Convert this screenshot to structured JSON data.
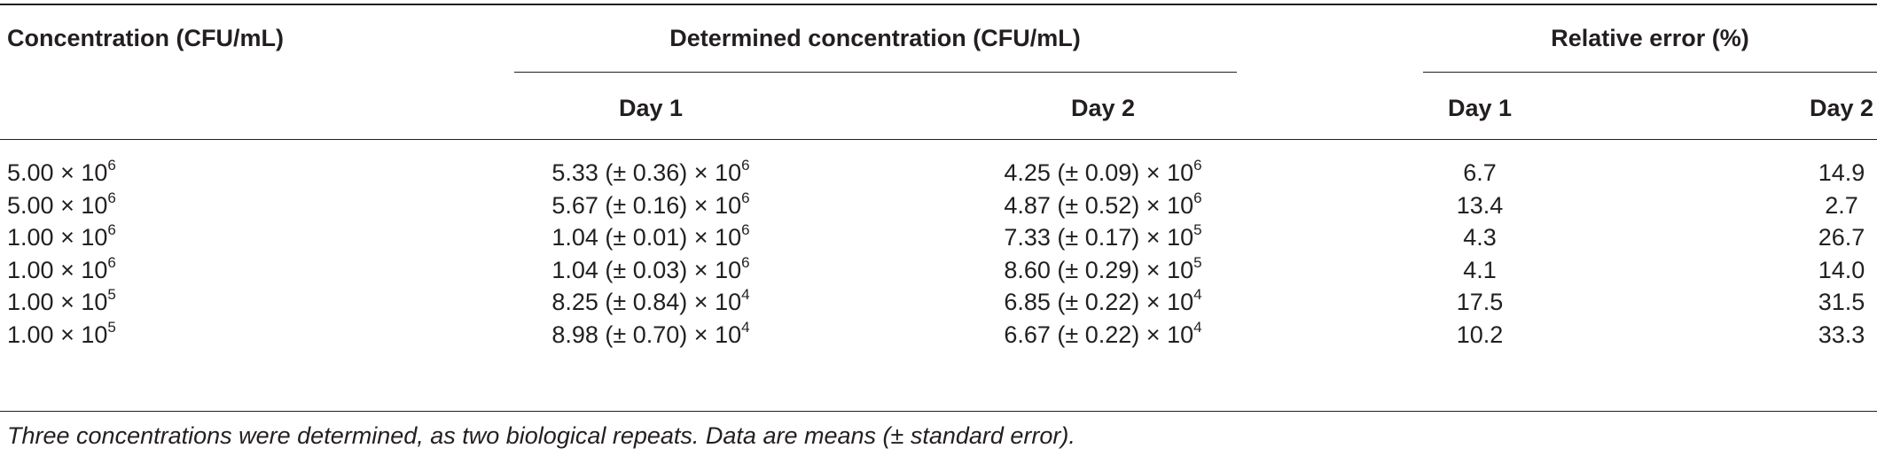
{
  "table": {
    "headers": {
      "concentration": "Concentration (CFU/mL)",
      "determined": "Determined concentration (CFU/mL)",
      "relative_error": "Relative error (%)",
      "det_day1": "Day 1",
      "det_day2": "Day 2",
      "err_day1": "Day 1",
      "err_day2": "Day 2"
    },
    "times": "×",
    "rows": [
      {
        "conc": {
          "m": "5.00",
          "e": "6"
        },
        "d1": {
          "m": "5.33 (± 0.36)",
          "e": "6"
        },
        "d2": {
          "m": "4.25 (± 0.09)",
          "e": "6"
        },
        "r1": "6.7",
        "r2": "14.9"
      },
      {
        "conc": {
          "m": "5.00",
          "e": "6"
        },
        "d1": {
          "m": "5.67 (± 0.16)",
          "e": "6"
        },
        "d2": {
          "m": "4.87 (± 0.52)",
          "e": "6"
        },
        "r1": "13.4",
        "r2": "2.7"
      },
      {
        "conc": {
          "m": "1.00",
          "e": "6"
        },
        "d1": {
          "m": "1.04 (± 0.01)",
          "e": "6"
        },
        "d2": {
          "m": "7.33 (± 0.17)",
          "e": "5"
        },
        "r1": "4.3",
        "r2": "26.7"
      },
      {
        "conc": {
          "m": "1.00",
          "e": "6"
        },
        "d1": {
          "m": "1.04 (± 0.03)",
          "e": "6"
        },
        "d2": {
          "m": "8.60 (± 0.29)",
          "e": "5"
        },
        "r1": "4.1",
        "r2": "14.0"
      },
      {
        "conc": {
          "m": "1.00",
          "e": "5"
        },
        "d1": {
          "m": "8.25 (± 0.84)",
          "e": "4"
        },
        "d2": {
          "m": "6.85 (± 0.22)",
          "e": "4"
        },
        "r1": "17.5",
        "r2": "31.5"
      },
      {
        "conc": {
          "m": "1.00",
          "e": "5"
        },
        "d1": {
          "m": "8.98 (± 0.70)",
          "e": "4"
        },
        "d2": {
          "m": "6.67 (± 0.22)",
          "e": "4"
        },
        "r1": "10.2",
        "r2": "33.3"
      }
    ],
    "footnote": "Three concentrations were determined, as two biological repeats. Data are means (± standard error)."
  }
}
